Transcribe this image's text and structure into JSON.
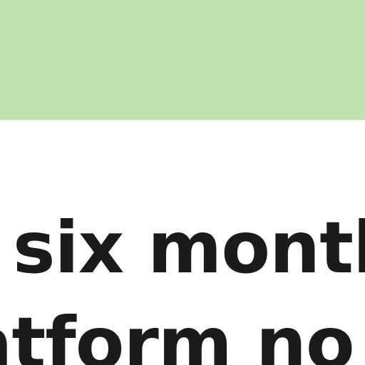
{
  "theme": {
    "band_color": "#c1e0b0",
    "text_color": "#1b1b1b",
    "background": "#ffffff"
  },
  "headline": {
    "line_1": "six month",
    "line_2": "atform no"
  }
}
